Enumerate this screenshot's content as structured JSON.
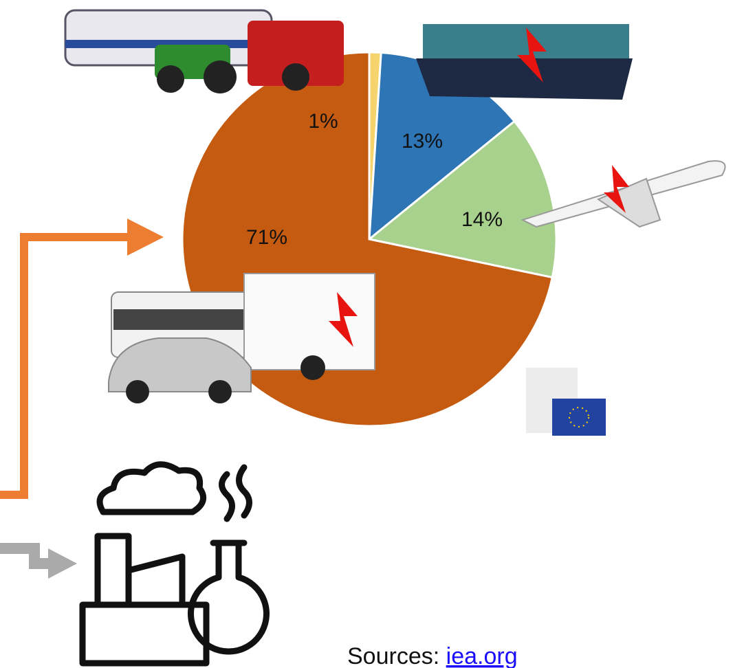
{
  "chart_data": {
    "type": "pie",
    "values": [
      1,
      13,
      14,
      71
    ],
    "value_labels": [
      "1%",
      "13%",
      "14%",
      "71%"
    ],
    "colors": [
      "#f5d46e",
      "#2e75b6",
      "#a9d18e",
      "#c55a11"
    ],
    "source": "Sources:",
    "source_link": "iea.org"
  }
}
